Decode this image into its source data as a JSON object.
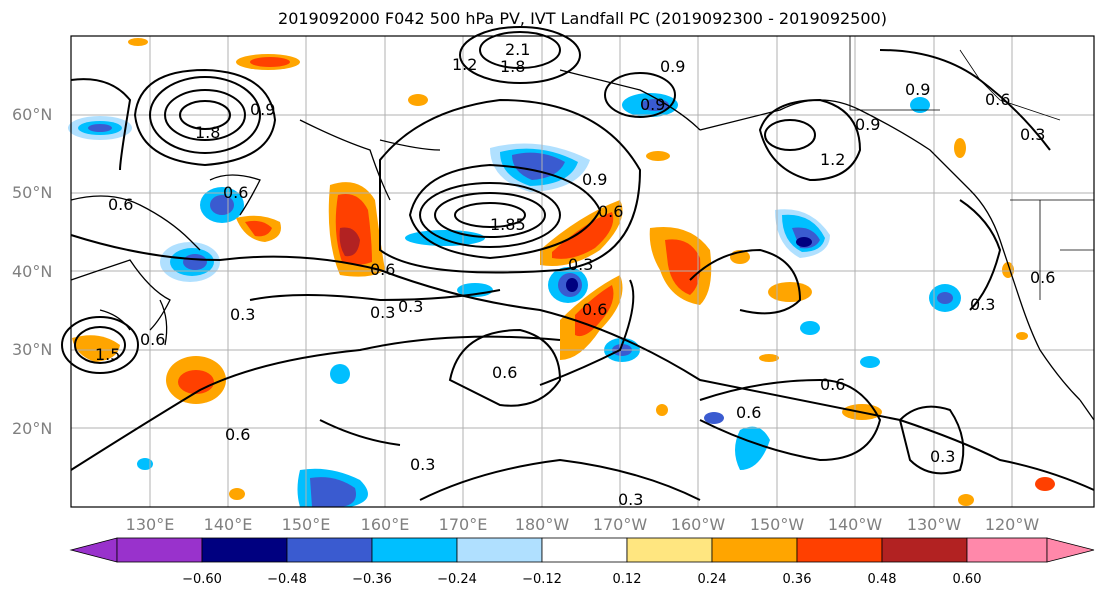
{
  "title": "2019092000 F042 500 hPa PV, IVT Landfall PC (2019092300 - 2019092500)",
  "lat_labels": [
    "60°N",
    "50°N",
    "40°N",
    "30°N",
    "20°N"
  ],
  "lon_labels": [
    "130°E",
    "140°E",
    "150°E",
    "160°E",
    "170°E",
    "180°W",
    "170°W",
    "160°W",
    "150°W",
    "140°W",
    "130°W",
    "120°W"
  ],
  "contour_labels": [
    "2.1",
    "1.8",
    "1.2",
    "0.9",
    "0.9",
    "0.6",
    "0.9",
    "1.8",
    "0.9",
    "0.6",
    "0.3",
    "1.2",
    "0.9",
    "0.6",
    "1.85",
    "0.6",
    "0.9",
    "0.6",
    "0.3",
    "0.6",
    "0.3",
    "0.3",
    "0.3",
    "0.6",
    "0.6",
    "0.6",
    "0.6",
    "0.3",
    "0.3",
    "0.3",
    "0.6",
    "0.3",
    "1.5",
    "0.6"
  ],
  "colorbar": {
    "ticks": [
      "−0.60",
      "−0.48",
      "−0.36",
      "−0.24",
      "−0.12",
      "0.12",
      "0.24",
      "0.36",
      "0.48",
      "0.60"
    ],
    "colors": [
      "#9932cc",
      "#000080",
      "#3a5bd0",
      "#00bfff",
      "#b0e0ff",
      "#ffffff",
      "#ffe680",
      "#ffa500",
      "#ff4000",
      "#b22222",
      "#ff88aa"
    ]
  }
}
